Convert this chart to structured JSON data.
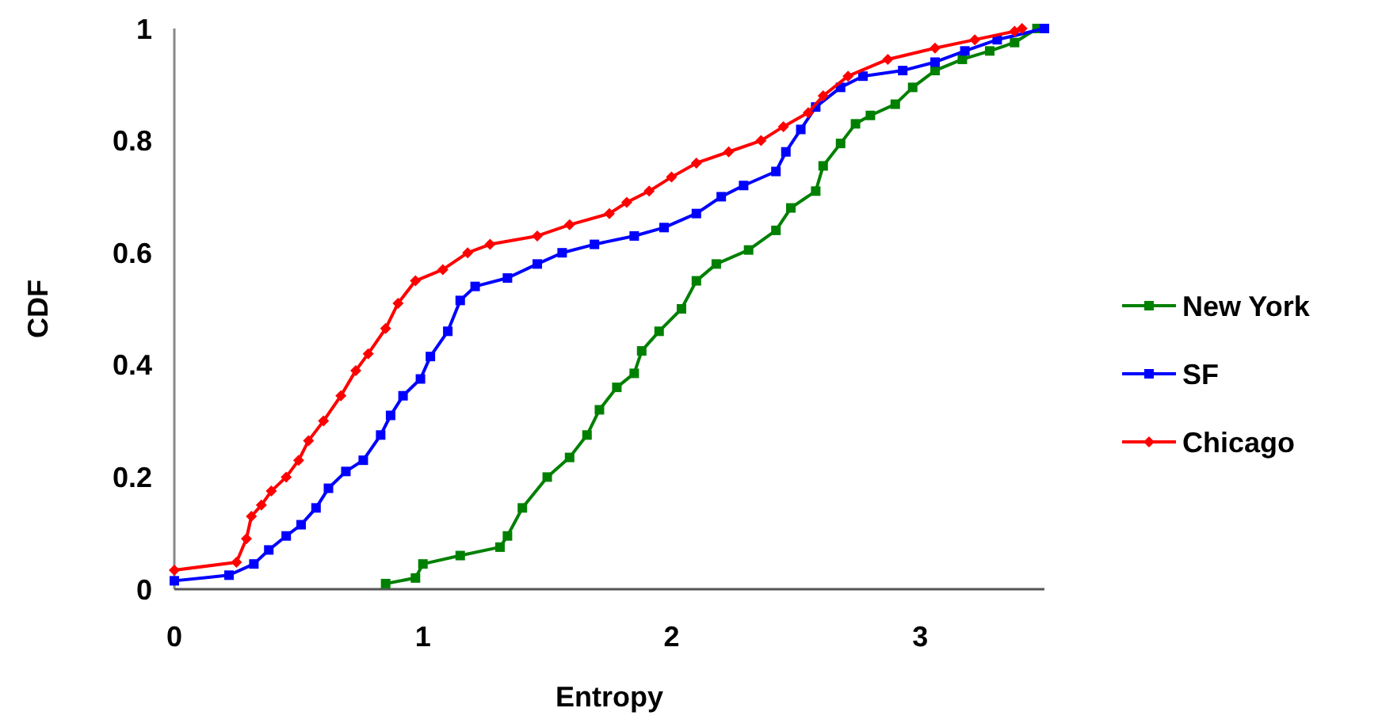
{
  "chart_data": {
    "type": "line",
    "xlabel": "Entropy",
    "ylabel": "CDF",
    "xlim": [
      0,
      3.5
    ],
    "ylim": [
      0,
      1
    ],
    "xticks": [
      0,
      1,
      2,
      3
    ],
    "yticks": [
      0,
      0.2,
      0.4,
      0.6,
      0.8,
      1
    ],
    "grid": false,
    "legend": "right",
    "line_style": "solid",
    "series": [
      {
        "name": "New York",
        "color": "#008000",
        "marker": "square",
        "x": [
          0.85,
          0.97,
          1.0,
          1.15,
          1.31,
          1.34,
          1.4,
          1.5,
          1.59,
          1.66,
          1.71,
          1.78,
          1.85,
          1.88,
          1.95,
          2.04,
          2.1,
          2.18,
          2.31,
          2.42,
          2.48,
          2.58,
          2.61,
          2.68,
          2.74,
          2.8,
          2.9,
          2.97,
          3.06,
          3.17,
          3.28,
          3.38,
          3.47
        ],
        "values": [
          0.01,
          0.02,
          0.045,
          0.06,
          0.075,
          0.095,
          0.145,
          0.2,
          0.235,
          0.275,
          0.32,
          0.36,
          0.385,
          0.425,
          0.46,
          0.5,
          0.55,
          0.58,
          0.605,
          0.64,
          0.68,
          0.71,
          0.755,
          0.795,
          0.83,
          0.845,
          0.865,
          0.895,
          0.925,
          0.945,
          0.96,
          0.975,
          1.0
        ]
      },
      {
        "name": "SF",
        "color": "#0000ff",
        "marker": "square",
        "x": [
          0,
          0.22,
          0.32,
          0.38,
          0.45,
          0.51,
          0.57,
          0.62,
          0.69,
          0.76,
          0.83,
          0.87,
          0.92,
          0.99,
          1.03,
          1.1,
          1.15,
          1.21,
          1.34,
          1.46,
          1.56,
          1.69,
          1.85,
          1.97,
          2.1,
          2.2,
          2.29,
          2.42,
          2.46,
          2.52,
          2.58,
          2.68,
          2.77,
          2.93,
          3.06,
          3.18,
          3.31,
          3.5
        ],
        "values": [
          0.015,
          0.025,
          0.045,
          0.07,
          0.095,
          0.115,
          0.145,
          0.18,
          0.21,
          0.23,
          0.275,
          0.31,
          0.345,
          0.375,
          0.415,
          0.46,
          0.515,
          0.54,
          0.555,
          0.58,
          0.6,
          0.615,
          0.63,
          0.645,
          0.67,
          0.7,
          0.72,
          0.745,
          0.78,
          0.82,
          0.86,
          0.895,
          0.915,
          0.925,
          0.94,
          0.96,
          0.98,
          1.0
        ]
      },
      {
        "name": "Chicago",
        "color": "#ff0000",
        "marker": "diamond",
        "x": [
          0,
          0.25,
          0.29,
          0.31,
          0.35,
          0.39,
          0.45,
          0.5,
          0.54,
          0.6,
          0.67,
          0.73,
          0.78,
          0.85,
          0.9,
          0.97,
          1.08,
          1.18,
          1.27,
          1.46,
          1.59,
          1.75,
          1.82,
          1.91,
          2.0,
          2.1,
          2.23,
          2.36,
          2.45,
          2.55,
          2.61,
          2.71,
          2.87,
          3.06,
          3.22,
          3.38,
          3.41
        ],
        "values": [
          0.034,
          0.048,
          0.09,
          0.13,
          0.15,
          0.175,
          0.2,
          0.23,
          0.265,
          0.3,
          0.345,
          0.39,
          0.42,
          0.465,
          0.51,
          0.55,
          0.57,
          0.6,
          0.615,
          0.63,
          0.65,
          0.67,
          0.69,
          0.71,
          0.735,
          0.76,
          0.78,
          0.8,
          0.825,
          0.85,
          0.88,
          0.915,
          0.945,
          0.965,
          0.98,
          0.995,
          1.0
        ]
      }
    ]
  }
}
